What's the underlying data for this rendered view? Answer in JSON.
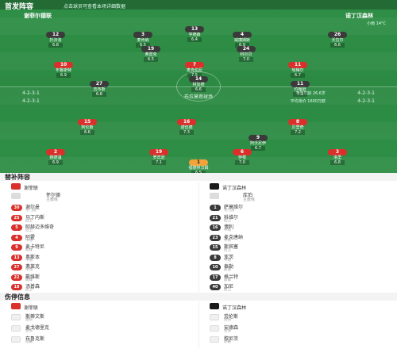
{
  "header": {
    "title": "首发阵容",
    "subtitle": "点击球员可查看本场详细数据"
  },
  "teams": {
    "home": {
      "name": "谢菲尔德联",
      "formation": "4-2-3-1",
      "formation2": "4-2-3-1"
    },
    "away": {
      "name": "诺丁汉森林",
      "formation": "4-2-3-1",
      "formation2": "4-2-3-1",
      "weather": "小雨 14°C"
    }
  },
  "avg": {
    "home_age": "平均年龄 26.2岁",
    "home_value": "平均身价 850万欧",
    "away_age": "平均年龄 26.6岁",
    "away_value": "平均身价 1600万欧"
  },
  "venue": "布拉莫巷球场",
  "home_players": [
    {
      "num": "1",
      "name": "福德林汉姆",
      "rating": "6.5",
      "cls": "gk"
    },
    {
      "num": "2",
      "name": "鲍德温",
      "rating": "6.9",
      "cls": "red"
    },
    {
      "num": "19",
      "name": "罗宾逊",
      "rating": "7.1",
      "cls": "red"
    },
    {
      "num": "6",
      "name": "伊根",
      "rating": "7.0",
      "cls": "red"
    },
    {
      "num": "3",
      "name": "洛里",
      "rating": "6.8",
      "cls": "red"
    },
    {
      "num": "15",
      "name": "阿伦斯",
      "rating": "6.6",
      "cls": "red"
    },
    {
      "num": "16",
      "name": "诺伍德",
      "rating": "7.3",
      "cls": "red"
    },
    {
      "num": "8",
      "name": "贝里奇",
      "rating": "7.2",
      "cls": "red"
    },
    {
      "num": "10",
      "name": "布鲁斯特",
      "rating": "6.9",
      "cls": "red"
    },
    {
      "num": "7",
      "name": "麦克伯尼",
      "rating": "7.5",
      "cls": "red"
    },
    {
      "num": "11",
      "name": "哈梅尔",
      "rating": "6.7",
      "cls": "red"
    }
  ],
  "away_players": [
    {
      "num": "13",
      "name": "亨德森",
      "rating": "6.4",
      "cls": "dark"
    },
    {
      "num": "12",
      "name": "托法洛",
      "rating": "6.8",
      "cls": "dark"
    },
    {
      "num": "3",
      "name": "麦肯纳",
      "rating": "6.5",
      "cls": "dark"
    },
    {
      "num": "4",
      "name": "威廉姆斯",
      "rating": "6.9",
      "cls": "dark"
    },
    {
      "num": "26",
      "name": "沃拉尔",
      "rating": "6.6",
      "cls": "dark"
    },
    {
      "num": "19",
      "name": "弗雷克",
      "rating": "6.5",
      "cls": "dark"
    },
    {
      "num": "24",
      "name": "科尔贝",
      "rating": "7.0",
      "cls": "dark"
    },
    {
      "num": "27",
      "name": "吉布斯",
      "rating": "6.8",
      "cls": "dark"
    },
    {
      "num": "11",
      "name": "约翰逊",
      "rating": "7.1",
      "cls": "dark"
    },
    {
      "num": "14",
      "name": "林加德",
      "rating": "6.6",
      "cls": "dark"
    },
    {
      "num": "9",
      "name": "阿沃尼伊",
      "rating": "6.7",
      "cls": "dark"
    }
  ],
  "bench": {
    "title": "替补阵容",
    "home_team": "谢菲联",
    "away_team": "诺丁汉森林",
    "home_coach": "怀尔德",
    "away_coach": "库珀",
    "coach_role": "主教练",
    "home": [
      {
        "num": "30",
        "name": "谢尔曼",
        "pos": "守门员",
        "tag": ""
      },
      {
        "num": "25",
        "name": "马丁内斯",
        "pos": "后卫",
        "tag": ""
      },
      {
        "num": "5",
        "name": "阿赫迈多维奇",
        "pos": "后卫",
        "tag": ""
      },
      {
        "num": "4",
        "name": "阿霍",
        "pos": "中场",
        "tag": ""
      },
      {
        "num": "9",
        "name": "麦卡特尼",
        "pos": "前锋",
        "tag": ""
      },
      {
        "num": "13",
        "name": "奥斯本",
        "pos": "中场",
        "tag": ""
      },
      {
        "num": "27",
        "name": "弗莱克",
        "pos": "中场",
        "tag": ""
      },
      {
        "num": "22",
        "name": "戴维斯",
        "pos": "前锋",
        "tag": ""
      },
      {
        "num": "18",
        "name": "汤普森",
        "pos": "后卫",
        "tag": ""
      }
    ],
    "away": [
      {
        "num": "1",
        "name": "萨莫维尔",
        "pos": "守门员",
        "tag": ""
      },
      {
        "num": "21",
        "name": "科维尔",
        "pos": "后卫",
        "tag": ""
      },
      {
        "num": "16",
        "name": "博利",
        "pos": "中场",
        "tag": ""
      },
      {
        "num": "23",
        "name": "麦克唐纳",
        "pos": "中场",
        "tag": ""
      },
      {
        "num": "15",
        "name": "斯宾塞",
        "pos": "后卫",
        "tag": ""
      },
      {
        "num": "8",
        "name": "亚茨",
        "pos": "中场",
        "tag": ""
      },
      {
        "num": "10",
        "name": "泰勒",
        "pos": "前锋",
        "tag": ""
      },
      {
        "num": "17",
        "name": "格兰特",
        "pos": "前锋",
        "tag": ""
      },
      {
        "num": "40",
        "name": "加尼",
        "pos": "后卫",
        "tag": ""
      }
    ]
  },
  "injury": {
    "title": "伤停信息",
    "home_team": "谢菲联",
    "away_team": "诺丁汉森林",
    "home": [
      {
        "name": "斯蒂文斯",
        "reason": "受伤"
      },
      {
        "name": "麦戈德里克",
        "reason": "受伤"
      },
      {
        "name": "布鲁克斯",
        "reason": "停赛"
      }
    ],
    "away": [
      {
        "name": "劳伦斯",
        "reason": "受伤"
      },
      {
        "name": "安德森",
        "reason": "受伤"
      },
      {
        "name": "穆尼茨",
        "reason": "停赛"
      }
    ]
  }
}
